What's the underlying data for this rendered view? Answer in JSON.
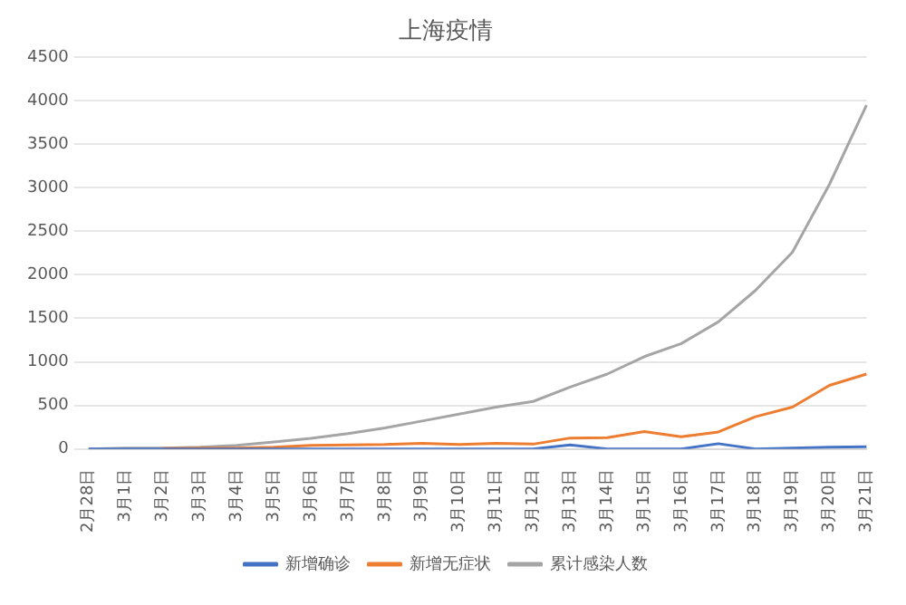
{
  "chart_data": {
    "type": "line",
    "title": "上海疫情",
    "categories": [
      "2月28日",
      "3月1日",
      "3月2日",
      "3月3日",
      "3月4日",
      "3月5日",
      "3月6日",
      "3月7日",
      "3月8日",
      "3月9日",
      "3月10日",
      "3月11日",
      "3月12日",
      "3月13日",
      "3月14日",
      "3月15日",
      "3月16日",
      "3月17日",
      "3月18日",
      "3月19日",
      "3月20日",
      "3月21日"
    ],
    "series": [
      {
        "name": "新增确诊",
        "color": "#4472c4",
        "values": [
          0,
          0,
          0,
          0,
          0,
          0,
          0,
          0,
          0,
          0,
          0,
          0,
          0,
          45,
          0,
          0,
          0,
          60,
          0,
          10,
          20,
          25
        ]
      },
      {
        "name": "新增无症状",
        "color": "#ed7d31",
        "values": [
          null,
          null,
          5,
          10,
          10,
          20,
          40,
          45,
          50,
          65,
          50,
          65,
          55,
          125,
          130,
          200,
          140,
          195,
          370,
          480,
          730,
          860
        ]
      },
      {
        "name": "累计感染人数",
        "color": "#a5a5a5",
        "values": [
          0,
          10,
          10,
          20,
          40,
          80,
          120,
          175,
          240,
          320,
          400,
          480,
          545,
          710,
          860,
          1060,
          1210,
          1460,
          1820,
          2260,
          3040,
          3950
        ]
      }
    ],
    "ylim": [
      0,
      4500
    ],
    "yticks": [
      0,
      500,
      1000,
      1500,
      2000,
      2500,
      3000,
      3500,
      4000,
      4500
    ],
    "grid": "y",
    "legend": "bottom",
    "marker": "none",
    "line_style": "solid"
  }
}
